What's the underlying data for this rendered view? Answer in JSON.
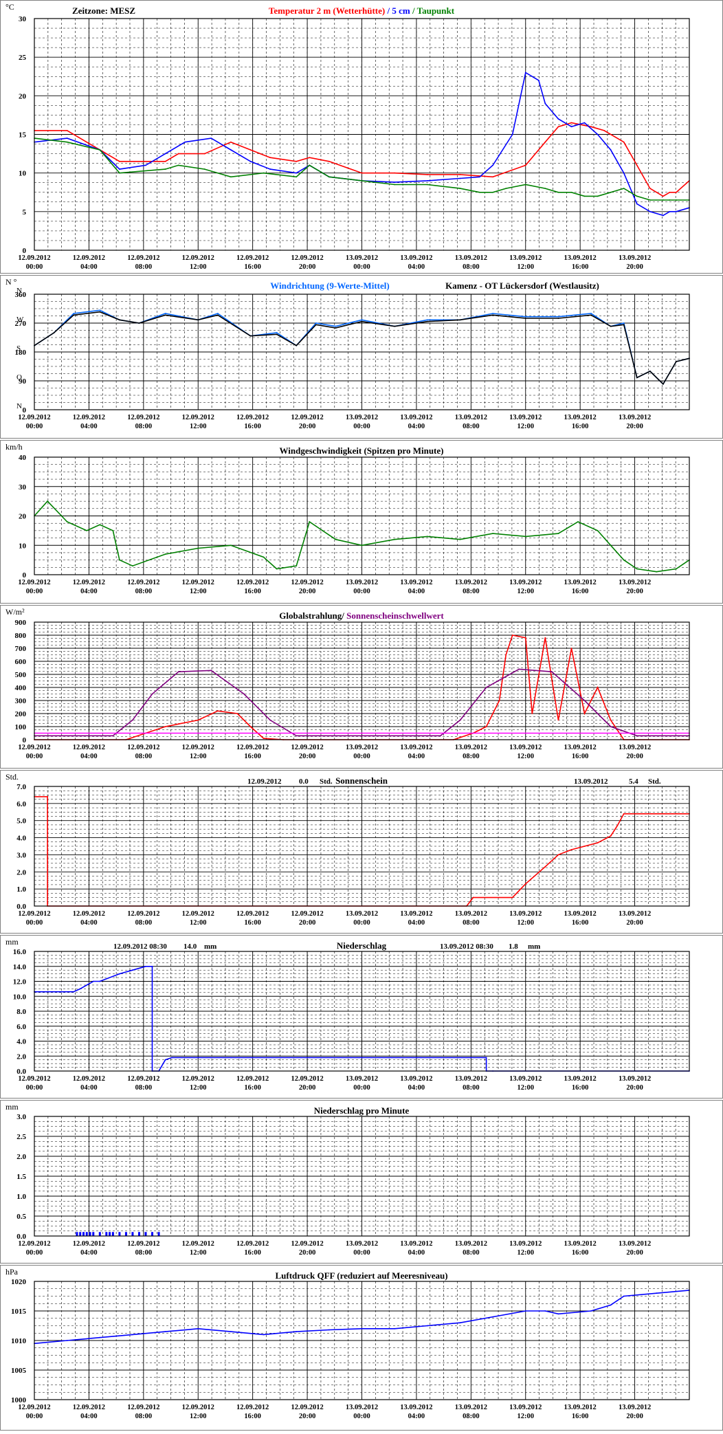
{
  "x_ticks": {
    "dates": [
      "12.09.2012",
      "12.09.2012",
      "12.09.2012",
      "12.09.2012",
      "12.09.2012",
      "12.09.2012",
      "13.09.2012",
      "13.09.2012",
      "13.09.2012",
      "13.09.2012",
      "13.09.2012",
      "13.09.2012"
    ],
    "times": [
      "00:00",
      "04:00",
      "08:00",
      "12:00",
      "16:00",
      "20:00",
      "00:00",
      "04:00",
      "08:00",
      "12:00",
      "16:00",
      "20:00"
    ]
  },
  "chart_data": [
    {
      "type": "line",
      "unit": "°C",
      "title_prefix": "Zeitzone: MESZ",
      "title_parts": [
        {
          "text": "Temperatur 2 m (Wetterhütte)",
          "color": "#ff0000"
        },
        {
          "text": " / ",
          "color": "#0000ff"
        },
        {
          "text": "5 cm",
          "color": "#0000ff"
        },
        {
          "text": " / ",
          "color": "#008000"
        },
        {
          "text": "Taupunkt",
          "color": "#008000"
        }
      ],
      "ylim": [
        0,
        30
      ],
      "ytick_values": [
        0,
        5,
        10,
        15,
        20,
        25,
        30
      ],
      "ytick_labels": [
        "0",
        "5",
        "10",
        "15",
        "20",
        "25",
        "30"
      ],
      "grid": true,
      "series": [
        {
          "name": "Temperatur 2 m (Wetterhütte)",
          "color": "#ff0000",
          "x": [
            0,
            0.05,
            0.1,
            0.13,
            0.2,
            0.22,
            0.26,
            0.3,
            0.33,
            0.36,
            0.4,
            0.42,
            0.45,
            0.5,
            0.55,
            0.6,
            0.65,
            0.7,
            0.75,
            0.78,
            0.8,
            0.82,
            0.85,
            0.87,
            0.9,
            0.92,
            0.94,
            0.96,
            0.97,
            0.98,
            1
          ],
          "y": [
            15.5,
            15.5,
            13,
            11.5,
            11.5,
            12.5,
            12.5,
            14,
            13,
            12,
            11.5,
            12,
            11.5,
            10,
            10,
            9.8,
            9.8,
            9.5,
            11,
            14,
            16,
            16.5,
            16,
            15.5,
            14,
            11,
            8,
            7,
            7.5,
            7.5,
            9
          ]
        },
        {
          "name": "5 cm",
          "color": "#0000ff",
          "x": [
            0,
            0.05,
            0.1,
            0.13,
            0.17,
            0.2,
            0.23,
            0.27,
            0.3,
            0.33,
            0.36,
            0.4,
            0.42,
            0.45,
            0.5,
            0.55,
            0.6,
            0.65,
            0.68,
            0.7,
            0.73,
            0.75,
            0.77,
            0.78,
            0.8,
            0.82,
            0.84,
            0.86,
            0.88,
            0.9,
            0.92,
            0.94,
            0.96,
            0.97,
            0.98,
            1
          ],
          "y": [
            14,
            14.5,
            13,
            10.5,
            11,
            12.5,
            14,
            14.5,
            13,
            11.5,
            10.5,
            10,
            11,
            9.5,
            9,
            8.8,
            9,
            9.3,
            9.5,
            11,
            15,
            23,
            22,
            19,
            17,
            16,
            16.5,
            15,
            13,
            10,
            6,
            5,
            4.5,
            5,
            5,
            5.5
          ]
        },
        {
          "name": "Taupunkt",
          "color": "#008000",
          "x": [
            0,
            0.05,
            0.1,
            0.13,
            0.2,
            0.22,
            0.26,
            0.3,
            0.35,
            0.4,
            0.42,
            0.45,
            0.5,
            0.55,
            0.6,
            0.65,
            0.68,
            0.7,
            0.72,
            0.75,
            0.78,
            0.8,
            0.82,
            0.84,
            0.86,
            0.88,
            0.9,
            0.92,
            0.94,
            0.96,
            0.97,
            0.98,
            1
          ],
          "y": [
            14.5,
            14,
            13,
            10,
            10.5,
            11,
            10.5,
            9.5,
            10,
            9.5,
            11,
            9.5,
            9,
            8.5,
            8.5,
            8,
            7.5,
            7.5,
            8,
            8.5,
            8,
            7.5,
            7.5,
            7,
            7,
            7.5,
            8,
            7,
            6.5,
            6.5,
            6.5,
            6.5,
            6.5
          ]
        }
      ]
    },
    {
      "type": "line",
      "unit": "N °",
      "title": "Windrichtung (9-Werte-Mittel)",
      "title_right": "Kamenz - OT Lückersdorf (Westlausitz)",
      "ylim": [
        0,
        360
      ],
      "ytick_values": [
        0,
        90,
        180,
        270,
        360
      ],
      "ytick_labels": [
        "0",
        "90",
        "180",
        "270",
        "360"
      ],
      "dir_labels": [
        "N",
        "O",
        "S",
        "W"
      ],
      "grid": true,
      "series": [
        {
          "name": "Windrichtung",
          "color": "#0066ff",
          "x": [
            0,
            0.03,
            0.06,
            0.1,
            0.13,
            0.16,
            0.2,
            0.25,
            0.28,
            0.33,
            0.37,
            0.4,
            0.43,
            0.46,
            0.5,
            0.55,
            0.6,
            0.65,
            0.7,
            0.75,
            0.8,
            0.85,
            0.88,
            0.9,
            0.92,
            0.94,
            0.96,
            0.98,
            1
          ],
          "y": [
            200,
            240,
            300,
            310,
            280,
            270,
            300,
            280,
            300,
            230,
            240,
            200,
            270,
            260,
            280,
            260,
            280,
            280,
            300,
            290,
            290,
            300,
            260,
            270,
            100,
            120,
            80,
            150,
            160
          ]
        },
        {
          "name": "9-Werte-Mittel",
          "color": "#000000",
          "x": [
            0,
            0.03,
            0.06,
            0.1,
            0.13,
            0.16,
            0.2,
            0.25,
            0.28,
            0.33,
            0.37,
            0.4,
            0.43,
            0.46,
            0.5,
            0.55,
            0.6,
            0.65,
            0.7,
            0.75,
            0.8,
            0.85,
            0.88,
            0.9,
            0.92,
            0.94,
            0.96,
            0.98,
            1
          ],
          "y": [
            200,
            240,
            295,
            305,
            280,
            270,
            295,
            280,
            295,
            230,
            235,
            200,
            265,
            255,
            275,
            260,
            275,
            280,
            295,
            285,
            285,
            295,
            260,
            265,
            100,
            120,
            80,
            150,
            160
          ]
        }
      ]
    },
    {
      "type": "line",
      "unit": "km/h",
      "title": "Windgeschwindigkeit (Spitzen pro Minute)",
      "ylim": [
        0,
        40
      ],
      "ytick_values": [
        0,
        10,
        20,
        30,
        40
      ],
      "ytick_labels": [
        "0",
        "10",
        "20",
        "30",
        "40"
      ],
      "grid": true,
      "series": [
        {
          "name": "Windgeschwindigkeit",
          "color": "#008000",
          "x": [
            0,
            0.02,
            0.05,
            0.08,
            0.1,
            0.12,
            0.13,
            0.15,
            0.2,
            0.25,
            0.3,
            0.35,
            0.37,
            0.4,
            0.42,
            0.44,
            0.46,
            0.5,
            0.55,
            0.6,
            0.65,
            0.7,
            0.75,
            0.8,
            0.83,
            0.86,
            0.88,
            0.9,
            0.92,
            0.95,
            0.98,
            1
          ],
          "y": [
            20,
            25,
            18,
            15,
            17,
            15,
            5,
            3,
            7,
            9,
            10,
            6,
            2,
            3,
            18,
            15,
            12,
            10,
            12,
            13,
            12,
            14,
            13,
            14,
            18,
            15,
            10,
            5,
            2,
            1,
            2,
            5
          ]
        }
      ]
    },
    {
      "type": "line",
      "unit": "W/m²",
      "title_parts": [
        {
          "text": "Globalstrahlung/ ",
          "color": "#000000"
        },
        {
          "text": "Sonnenscheinschwellwert",
          "color": "#800080"
        }
      ],
      "ylim": [
        0,
        900
      ],
      "ytick_values": [
        0,
        100,
        200,
        300,
        400,
        500,
        600,
        700,
        800,
        900
      ],
      "ytick_labels": [
        "0",
        "100",
        "200",
        "300",
        "400",
        "500",
        "600",
        "700",
        "800",
        "900"
      ],
      "grid": true,
      "series": [
        {
          "name": "Globalstrahlung",
          "color": "#ff0000",
          "x": [
            0,
            0.14,
            0.17,
            0.2,
            0.22,
            0.25,
            0.28,
            0.31,
            0.33,
            0.35,
            0.38,
            0.64,
            0.67,
            0.69,
            0.71,
            0.72,
            0.73,
            0.75,
            0.76,
            0.78,
            0.8,
            0.82,
            0.84,
            0.86,
            0.88,
            0.9,
            1
          ],
          "y": [
            0,
            0,
            50,
            100,
            120,
            150,
            220,
            200,
            100,
            10,
            0,
            0,
            50,
            100,
            300,
            650,
            800,
            780,
            200,
            780,
            150,
            700,
            200,
            400,
            150,
            0,
            0
          ]
        },
        {
          "name": "Sonnenscheinschwellwert",
          "color": "#800080",
          "x": [
            0,
            0.12,
            0.15,
            0.18,
            0.22,
            0.27,
            0.32,
            0.36,
            0.4,
            0.62,
            0.65,
            0.69,
            0.74,
            0.79,
            0.84,
            0.88,
            0.92,
            1
          ],
          "y": [
            30,
            30,
            150,
            350,
            520,
            530,
            350,
            150,
            30,
            30,
            150,
            400,
            540,
            520,
            300,
            100,
            30,
            30
          ]
        },
        {
          "name": "Schwelle",
          "color": "#ff00ff",
          "x": [
            0,
            1
          ],
          "y": [
            50,
            50
          ]
        }
      ]
    },
    {
      "type": "line",
      "unit": "Std.",
      "title": "Sonnenschein",
      "annot_left": [
        "12.09.2012",
        "0.0",
        "Std."
      ],
      "annot_right": [
        "13.09.2012",
        "5.4",
        "Std."
      ],
      "ylim": [
        0,
        7
      ],
      "ytick_values": [
        0,
        1,
        2,
        3,
        4,
        5,
        6,
        7
      ],
      "ytick_labels": [
        "0.0",
        "1.0",
        "2.0",
        "3.0",
        "4.0",
        "5.0",
        "6.0",
        "7.0"
      ],
      "grid": true,
      "series": [
        {
          "name": "Sonnenschein",
          "color": "#ff0000",
          "x": [
            0,
            0.02,
            0.02,
            0.66,
            0.67,
            0.73,
            0.75,
            0.78,
            0.8,
            0.82,
            0.84,
            0.86,
            0.87,
            0.88,
            0.89,
            0.9,
            1
          ],
          "y": [
            6.4,
            6.4,
            0,
            0,
            0.5,
            0.5,
            1.3,
            2.3,
            3,
            3.3,
            3.5,
            3.7,
            3.9,
            4.1,
            4.7,
            5.4,
            5.4
          ]
        }
      ]
    },
    {
      "type": "line",
      "unit": "mm",
      "title": "Niederschlag",
      "annot_left": [
        "12.09.2012 08:30",
        "14.0",
        "mm"
      ],
      "annot_right": [
        "13.09.2012 08:30",
        "1.8",
        "mm"
      ],
      "ylim": [
        0,
        16
      ],
      "ytick_values": [
        0,
        2,
        4,
        6,
        8,
        10,
        12,
        14,
        16
      ],
      "ytick_labels": [
        "0.0",
        "2.0",
        "4.0",
        "6.0",
        "8.0",
        "10.0",
        "12.0",
        "14.0",
        "16.0"
      ],
      "grid": true,
      "series": [
        {
          "name": "Niederschlag",
          "color": "#0000ff",
          "x": [
            0,
            0.06,
            0.07,
            0.09,
            0.1,
            0.13,
            0.15,
            0.17,
            0.18,
            0.18,
            0.19,
            0.2,
            0.21,
            0.69,
            0.69,
            0.7,
            1
          ],
          "y": [
            10.6,
            10.6,
            11,
            12,
            12,
            13,
            13.5,
            14,
            14,
            0,
            0,
            1.5,
            1.8,
            1.8,
            0,
            0,
            0
          ]
        }
      ]
    },
    {
      "type": "bar",
      "unit": "mm",
      "title": "Niederschlag pro Minute",
      "ylim": [
        0,
        3
      ],
      "ytick_values": [
        0,
        0.5,
        1,
        1.5,
        2,
        2.5,
        3
      ],
      "ytick_labels": [
        "0.0",
        "0.5",
        "1.0",
        "1.5",
        "2.0",
        "2.5",
        "3.0"
      ],
      "grid": true,
      "series": [
        {
          "name": "Niederschlag pro Minute",
          "color": "#0000ff",
          "x": [
            0.065,
            0.07,
            0.075,
            0.08,
            0.085,
            0.09,
            0.1,
            0.11,
            0.115,
            0.12,
            0.13,
            0.14,
            0.15,
            0.16,
            0.17,
            0.18,
            0.19
          ],
          "y": [
            0.1,
            0.1,
            0.1,
            0.1,
            0.1,
            0.1,
            0.1,
            0.1,
            0.1,
            0.1,
            0.1,
            0.1,
            0.1,
            0.1,
            0.1,
            0.1,
            0.1
          ]
        }
      ]
    },
    {
      "type": "line",
      "unit": "hPa",
      "title": "Luftdruck QFF (reduziert auf Meeresniveau)",
      "ylim": [
        1000,
        1020
      ],
      "ytick_values": [
        1000,
        1005,
        1010,
        1015,
        1020
      ],
      "ytick_labels": [
        "1000",
        "1005",
        "1010",
        "1015",
        "1020"
      ],
      "grid": true,
      "series": [
        {
          "name": "Luftdruck QFF",
          "color": "#0000ff",
          "x": [
            0,
            0.05,
            0.1,
            0.15,
            0.2,
            0.25,
            0.3,
            0.35,
            0.4,
            0.45,
            0.5,
            0.55,
            0.6,
            0.65,
            0.7,
            0.75,
            0.78,
            0.8,
            0.85,
            0.88,
            0.9,
            0.95,
            1
          ],
          "y": [
            1009.5,
            1010,
            1010.5,
            1011,
            1011.5,
            1012,
            1011.5,
            1011,
            1011.5,
            1011.8,
            1012,
            1012,
            1012.5,
            1013,
            1014,
            1015,
            1015,
            1014.5,
            1015,
            1016,
            1017.5,
            1018,
            1018.5
          ]
        }
      ]
    }
  ]
}
